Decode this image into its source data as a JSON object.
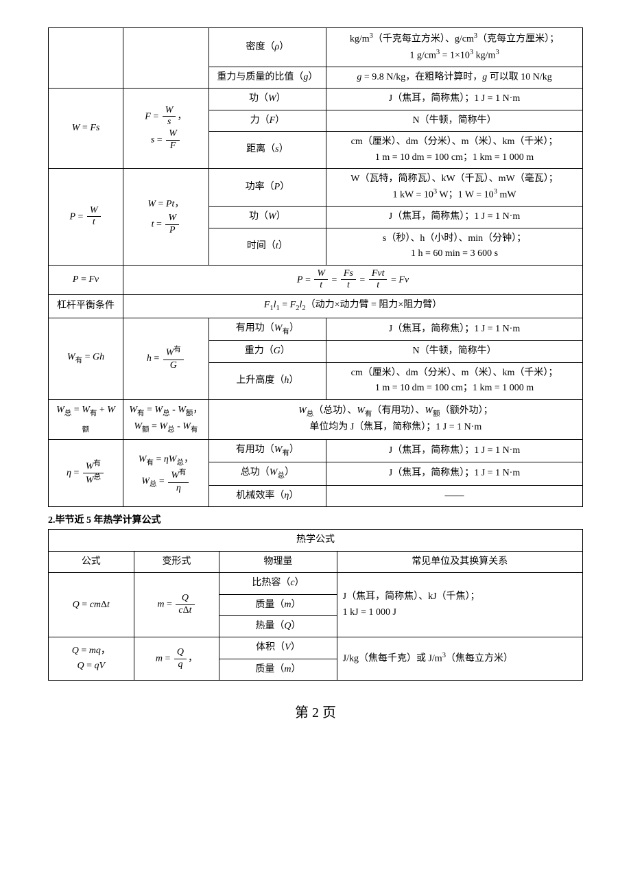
{
  "table1": {
    "col_widths": [
      "14%",
      "16%",
      "22%",
      "48%"
    ],
    "rows": [
      {
        "cells": [
          {
            "rowspan": 2,
            "html": ""
          },
          {
            "rowspan": 2,
            "html": ""
          },
          {
            "html": "密度（<span class='it'>ρ</span>）"
          },
          {
            "html": "kg/m<sup>3</sup>（千克每立方米）、g/cm<sup>3</sup>（克每立方厘米）；<br>1 g/cm<sup>3</sup> = 1×10<sup>3</sup> kg/m<sup>3</sup>"
          }
        ]
      },
      {
        "cells": [
          {
            "html": "重力与质量的比值（<span class='it'>g</span>）"
          },
          {
            "html": "<span class='it'>g</span> = 9.8 N/kg，在粗略计算时，<span class='it'>g</span> 可以取 10 N/kg"
          }
        ]
      },
      {
        "cells": [
          {
            "rowspan": 3,
            "html": "<span class='it'>W</span> = <span class='it'>Fs</span>"
          },
          {
            "rowspan": 3,
            "html": "<span class='it'>F</span> = <span class='frac'><span class='num'><span class='it'>W</span></span><span class='den'><span class='it'>s</span></span></span>，<br><span class='it'>s</span> = <span class='frac'><span class='num'><span class='it'>W</span></span><span class='den'><span class='it'>F</span></span></span>"
          },
          {
            "html": "功（<span class='it'>W</span>）"
          },
          {
            "html": "J（焦耳，简称焦）；1 J = 1 N·m"
          }
        ]
      },
      {
        "cells": [
          {
            "html": "力（<span class='it'>F</span>）"
          },
          {
            "html": "N（牛顿，简称牛）"
          }
        ]
      },
      {
        "cells": [
          {
            "html": "距离（<span class='it'>s</span>）"
          },
          {
            "html": "cm（厘米）、dm（分米）、m（米）、km（千米）；<br>1 m = 10 dm = 100 cm；1 km = 1 000 m"
          }
        ]
      },
      {
        "cells": [
          {
            "rowspan": 3,
            "html": "<span class='it'>P</span> = <span class='frac'><span class='num'><span class='it'>W</span></span><span class='den'><span class='it'>t</span></span></span>"
          },
          {
            "rowspan": 3,
            "html": "<span class='it'>W</span> = <span class='it'>Pt</span>，<br><span class='it'>t</span> = <span class='frac'><span class='num'><span class='it'>W</span></span><span class='den'><span class='it'>P</span></span></span>"
          },
          {
            "html": "功率（<span class='it'>P</span>）"
          },
          {
            "html": "W（瓦特，简称瓦）、kW（千瓦）、mW（毫瓦）；<br>1 kW = 10<sup>3</sup> W；1 W = 10<sup>3</sup> mW"
          }
        ]
      },
      {
        "cells": [
          {
            "html": "功（<span class='it'>W</span>）"
          },
          {
            "html": "J（焦耳，简称焦）；1 J = 1 N·m"
          }
        ]
      },
      {
        "cells": [
          {
            "html": "时间（<span class='it'>t</span>）"
          },
          {
            "html": "s（秒）、h（小时）、min（分钟）；<br>1 h = 60 min = 3 600 s"
          }
        ]
      },
      {
        "cells": [
          {
            "html": "<span class='it'>P</span> = <span class='it'>Fv</span>"
          },
          {
            "colspan": 3,
            "html": "<span class='it'>P</span> = <span class='frac'><span class='num'><span class='it'>W</span></span><span class='den'><span class='it'>t</span></span></span> = <span class='frac'><span class='num'><span class='it'>Fs</span></span><span class='den'><span class='it'>t</span></span></span> = <span class='frac'><span class='num'><span class='it'>Fvt</span></span><span class='den'><span class='it'>t</span></span></span> = <span class='it'>Fv</span>"
          }
        ]
      },
      {
        "cells": [
          {
            "html": "杠杆平衡条件"
          },
          {
            "colspan": 3,
            "html": "<span class='it'>F</span><sub>1</sub><span class='it'>l</span><sub>1</sub> = <span class='it'>F</span><sub>2</sub><span class='it'>l</span><sub>2</sub>（动力×动力臂 = 阻力×阻力臂）"
          }
        ]
      },
      {
        "cells": [
          {
            "rowspan": 3,
            "html": "<span class='it'>W</span><sub>有</sub> = <span class='it'>Gh</span>"
          },
          {
            "rowspan": 3,
            "html": "<span class='it'>h</span> = <span class='frac'><span class='num'><span class='it'>W</span><sup>有</sup></span><span class='den'><span class='it'>G</span></span></span>"
          },
          {
            "html": "有用功（<span class='it'>W</span><sub>有</sub>）"
          },
          {
            "html": "J（焦耳，简称焦）；1 J = 1 N·m"
          }
        ]
      },
      {
        "cells": [
          {
            "html": "重力（<span class='it'>G</span>）"
          },
          {
            "html": "N（牛顿，简称牛）"
          }
        ]
      },
      {
        "cells": [
          {
            "html": "上升高度（<span class='it'>h</span>）"
          },
          {
            "html": "cm（厘米）、dm（分米）、m（米）、km（千米）；<br>1 m = 10 dm = 100 cm；1 km = 1 000 m"
          }
        ]
      },
      {
        "cells": [
          {
            "html": "<span class='it'>W</span><sub>总</sub> = <span class='it'>W</span><sub>有</sub> + <span class='it'>W</span><sub>额</sub>"
          },
          {
            "html": "<span class='it'>W</span><sub>有</sub> = <span class='it'>W</span><sub>总</sub> - <span class='it'>W</span><sub>额</sub>，<br><span class='it'>W</span><sub>额</sub> = <span class='it'>W</span><sub>总</sub> - <span class='it'>W</span><sub>有</sub>"
          },
          {
            "colspan": 2,
            "html": "<span class='it'>W</span><sub>总</sub>（总功）、<span class='it'>W</span><sub>有</sub>（有用功）、<span class='it'>W</span><sub>额</sub>（额外功）；<br>单位均为 J（焦耳，简称焦）；1 J = 1 N·m"
          }
        ]
      },
      {
        "cells": [
          {
            "rowspan": 3,
            "html": "<span class='it'>η</span> = <span class='frac'><span class='num'><span class='it'>W</span><sup>有</sup></span><span class='den'><span class='it'>W</span><sup>总</sup></span></span>"
          },
          {
            "rowspan": 3,
            "html": "<span class='it'>W</span><sub>有</sub> = <span class='it'>ηW</span><sub>总</sub>，<br><span class='it'>W</span><sub>总</sub> = <span class='frac'><span class='num'><span class='it'>W</span><sup>有</sup></span><span class='den'><span class='it'>η</span></span></span>"
          },
          {
            "html": "有用功（<span class='it'>W</span><sub>有</sub>）"
          },
          {
            "html": "J（焦耳，简称焦）；1 J = 1 N·m"
          }
        ]
      },
      {
        "cells": [
          {
            "html": "总功（<span class='it'>W</span><sub>总</sub>）"
          },
          {
            "html": "J（焦耳，简称焦）；1 J = 1 N·m"
          }
        ]
      },
      {
        "cells": [
          {
            "html": "机械效率（<span class='it'>η</span>）"
          },
          {
            "html": "——"
          }
        ]
      }
    ]
  },
  "section2": {
    "title": "2.毕节近 5 年热学计算公式"
  },
  "table2": {
    "col_widths": [
      "16%",
      "16%",
      "22%",
      "46%"
    ],
    "header_row": {
      "colspan": 4,
      "html": "热学公式"
    },
    "labels": [
      "公式",
      "变形式",
      "物理量",
      "常见单位及其换算关系"
    ],
    "rows": [
      {
        "cells": [
          {
            "rowspan": 3,
            "html": "<span class='it'>Q</span> = <span class='it'>cm</span>Δ<span class='it'>t</span>"
          },
          {
            "rowspan": 3,
            "html": "<span class='it'>m</span> = <span class='frac'><span class='num'><span class='it'>Q</span></span><span class='den'><span class='it'>c</span>Δ<span class='it'>t</span></span></span>"
          },
          {
            "html": "比热容（<span class='it'>c</span>）"
          },
          {
            "rowspan": 3,
            "class": "left",
            "html": "J（焦耳，简称焦）、kJ（千焦）；<br>1 kJ = 1 000 J"
          }
        ]
      },
      {
        "cells": [
          {
            "html": "质量（<span class='it'>m</span>）"
          }
        ]
      },
      {
        "cells": [
          {
            "html": "热量（<span class='it'>Q</span>）"
          }
        ]
      },
      {
        "cells": [
          {
            "rowspan": 2,
            "html": "<span class='it'>Q</span> = <span class='it'>mq</span>，<br><span class='it'>Q</span> = <span class='it'>qV</span>"
          },
          {
            "rowspan": 2,
            "html": "<span class='it'>m</span> = <span class='frac'><span class='num'><span class='it'>Q</span></span><span class='den'><span class='it'>q</span></span></span>，"
          },
          {
            "html": "体积（<span class='it'>V</span>）"
          },
          {
            "rowspan": 2,
            "class": "left",
            "html": "J/kg（焦每千克）或 J/m<sup>3</sup>（焦每立方米）"
          }
        ]
      },
      {
        "cells": [
          {
            "html": "质量（<span class='it'>m</span>）"
          }
        ]
      }
    ]
  },
  "page_number": "第 2 页"
}
